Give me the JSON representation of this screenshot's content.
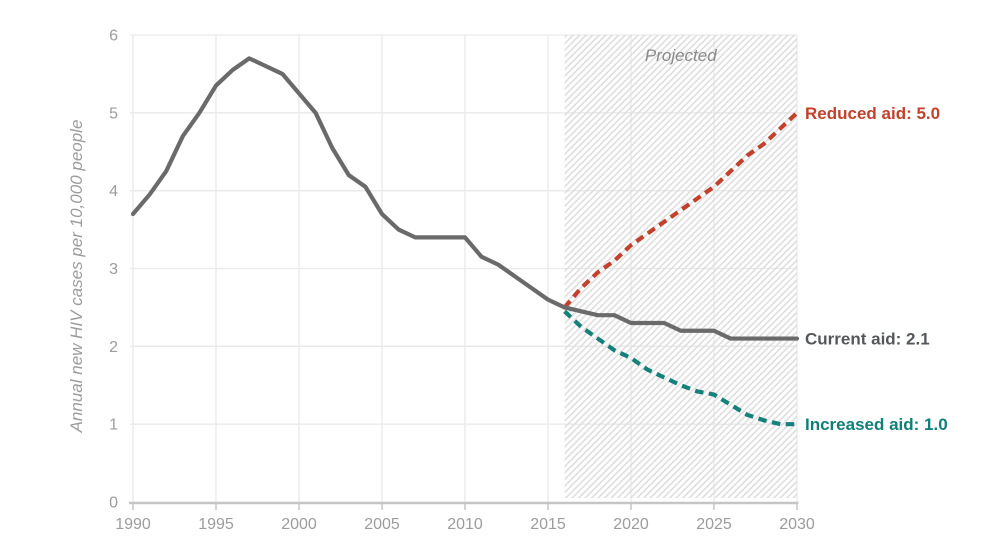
{
  "chart_data": {
    "type": "line",
    "title": "",
    "xlabel": "",
    "ylabel": "Annual new HIV cases per 10,000 people",
    "xlim": [
      1990,
      2030
    ],
    "ylim": [
      0,
      6
    ],
    "x_ticks": [
      1990,
      1995,
      2000,
      2005,
      2010,
      2015,
      2020,
      2025,
      2030
    ],
    "y_ticks": [
      0,
      1,
      2,
      3,
      4,
      5,
      6
    ],
    "grid": true,
    "legend_position": "right-end-labels",
    "projection_region": {
      "start": 2016,
      "end": 2030,
      "label": "Projected"
    },
    "series": [
      {
        "name": "historical",
        "label": "",
        "color": "#6a6a6a",
        "label_color": "#54585a",
        "style": "solid",
        "x": [
          1990,
          1991,
          1992,
          1993,
          1994,
          1995,
          1996,
          1997,
          1998,
          1999,
          2000,
          2001,
          2002,
          2003,
          2004,
          2005,
          2006,
          2007,
          2008,
          2009,
          2010,
          2011,
          2012,
          2013,
          2014,
          2015,
          2016
        ],
        "values": [
          3.7,
          3.95,
          4.25,
          4.7,
          5.0,
          5.35,
          5.55,
          5.7,
          5.6,
          5.5,
          5.25,
          5.0,
          4.55,
          4.2,
          4.05,
          3.7,
          3.5,
          3.4,
          3.4,
          3.4,
          3.4,
          3.15,
          3.05,
          2.9,
          2.75,
          2.6,
          2.5
        ]
      },
      {
        "name": "reduced-aid",
        "label": "Reduced aid: 5.0",
        "color": "#c2412c",
        "label_color": "#c2412c",
        "style": "dashed",
        "x": [
          2016,
          2017,
          2018,
          2019,
          2020,
          2021,
          2022,
          2023,
          2024,
          2025,
          2026,
          2027,
          2028,
          2029,
          2030
        ],
        "values": [
          2.5,
          2.75,
          2.95,
          3.1,
          3.3,
          3.45,
          3.6,
          3.75,
          3.9,
          4.05,
          4.25,
          4.45,
          4.6,
          4.8,
          5.0
        ]
      },
      {
        "name": "current-aid",
        "label": "Current aid: 2.1",
        "color": "#6a6a6a",
        "label_color": "#54585a",
        "style": "solid",
        "x": [
          2016,
          2017,
          2018,
          2019,
          2020,
          2021,
          2022,
          2023,
          2024,
          2025,
          2026,
          2027,
          2028,
          2029,
          2030
        ],
        "values": [
          2.5,
          2.45,
          2.4,
          2.4,
          2.3,
          2.3,
          2.3,
          2.2,
          2.2,
          2.2,
          2.1,
          2.1,
          2.1,
          2.1,
          2.1
        ]
      },
      {
        "name": "increased-aid",
        "label": "Increased aid: 1.0",
        "color": "#16817b",
        "label_color": "#107f79",
        "style": "dashed",
        "x": [
          2016,
          2017,
          2018,
          2019,
          2020,
          2021,
          2022,
          2023,
          2024,
          2025,
          2026,
          2027,
          2028,
          2029,
          2030
        ],
        "values": [
          2.45,
          2.25,
          2.1,
          1.95,
          1.85,
          1.7,
          1.6,
          1.5,
          1.42,
          1.38,
          1.25,
          1.12,
          1.05,
          1.0,
          1.0
        ]
      }
    ],
    "palette": {
      "gridline": "#e9e9e9",
      "axis": "#c5c5c5",
      "tick_text": "#9c9c9c",
      "projected_text": "#8a8a8a",
      "hatch_stripe": "#dcdcdc"
    }
  }
}
